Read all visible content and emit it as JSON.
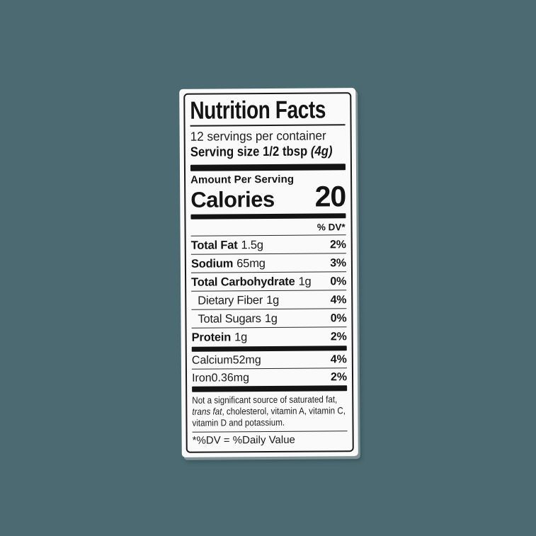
{
  "colors": {
    "background": "#4c6a72",
    "label_background": "#fafafa",
    "ink": "#141414"
  },
  "label": {
    "title": "Nutrition Facts",
    "servings_per_container": "12 servings per container",
    "serving_size_label": "Serving size",
    "serving_size_value": "1/2 tbsp",
    "serving_size_weight": "(4g)",
    "amount_per_serving": "Amount Per Serving",
    "calories_label": "Calories",
    "calories_value": "20",
    "dv_header": "% DV*",
    "rows": [
      {
        "name": "Total Fat",
        "amount": "1.5g",
        "dv": "2%"
      },
      {
        "name": "Sodium",
        "amount": "65mg",
        "dv": "3%"
      },
      {
        "name": "Total Carbohydrate",
        "amount": "1g",
        "dv": "0%"
      },
      {
        "name": "Dietary Fiber",
        "amount": "1g",
        "dv": "4%"
      },
      {
        "name": "Total Sugars",
        "amount": "1g",
        "dv": "0%"
      },
      {
        "name": "Protein",
        "amount": "1g",
        "dv": "2%"
      }
    ],
    "minerals": [
      {
        "name": "Calcium",
        "amount": "52mg",
        "dv": "4%"
      },
      {
        "name": "Iron",
        "amount": "0.36mg",
        "dv": "2%"
      }
    ],
    "footnote_pre": "Not a significant source of saturated fat, ",
    "footnote_italic": "trans fat",
    "footnote_post": ", cholesterol, vitamin A, vitamin C, vitamin D and potassium.",
    "dv_definition": "*%DV = %Daily Value"
  }
}
